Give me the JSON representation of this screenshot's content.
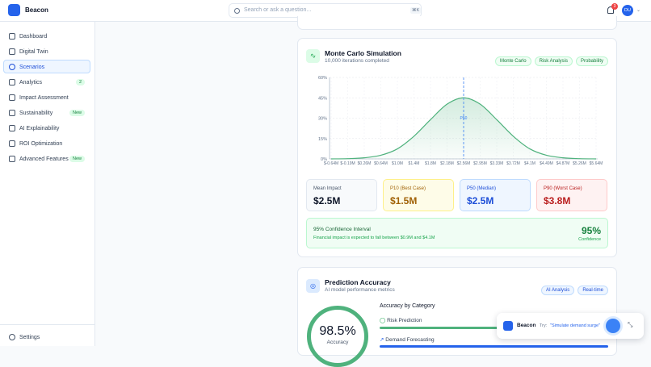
{
  "header": {
    "brand": "Beacon",
    "search_placeholder": "Search or ask a question...",
    "shortcut": "⌘K",
    "notifications": "3",
    "avatar": "DU"
  },
  "sidebar": {
    "items": [
      {
        "label": "Dashboard"
      },
      {
        "label": "Digital Twin"
      },
      {
        "label": "Scenarios"
      },
      {
        "label": "Analytics",
        "badge": "2"
      },
      {
        "label": "Impact Assessment"
      },
      {
        "label": "Sustainability",
        "badge": "New"
      },
      {
        "label": "AI Explainability"
      },
      {
        "label": "ROI Optimization"
      },
      {
        "label": "Advanced Features",
        "badge": "New"
      }
    ],
    "footer": "Settings"
  },
  "monte_carlo": {
    "title": "Monte Carlo Simulation",
    "subtitle": "10,000 iterations completed",
    "tags": [
      "Monte Carlo",
      "Risk Analysis",
      "Probability"
    ],
    "stats": [
      {
        "label": "Mean Impact",
        "value": "$2.5M"
      },
      {
        "label": "P10 (Best Case)",
        "value": "$1.5M"
      },
      {
        "label": "P50 (Median)",
        "value": "$2.5M"
      },
      {
        "label": "P90 (Worst Case)",
        "value": "$3.8M"
      }
    ],
    "confidence": {
      "title": "95% Confidence Interval",
      "text": "Financial impact is expected to fall between $0.9M and $4.1M",
      "value": "95%",
      "caption": "Confidence"
    }
  },
  "chart_data": {
    "type": "area",
    "color": "#4fb27d",
    "grid": true,
    "categories": [
      "$-0.64M",
      "$-0.19M",
      "$0.26M",
      "$0.64M",
      "$1.0M",
      "$1.4M",
      "$1.8M",
      "$2.18M",
      "$2.56M",
      "$2.95M",
      "$3.33M",
      "$3.72M",
      "$4.1M",
      "$4.49M",
      "$4.87M",
      "$5.26M",
      "$5.64M"
    ],
    "values": [
      0,
      0.2,
      0.8,
      2.7,
      7.4,
      16.7,
      28.9,
      40.3,
      45,
      40.3,
      28.9,
      16.7,
      7.4,
      2.7,
      0.8,
      0.2,
      0
    ],
    "ylim": [
      0,
      60
    ],
    "yticks": [
      {
        "value": 0,
        "label": "0%"
      },
      {
        "value": 15,
        "label": "15%"
      },
      {
        "value": 30,
        "label": "30%"
      },
      {
        "value": 45,
        "label": "45%"
      },
      {
        "value": 60,
        "label": "60%"
      }
    ],
    "annotations": [
      {
        "label": "P50",
        "x": "$2.56M"
      }
    ]
  },
  "accuracy": {
    "title": "Prediction Accuracy",
    "subtitle": "AI model performance metrics",
    "tags": [
      "AI Analysis",
      "Real-time"
    ],
    "score": "98.5%",
    "score_label": "Accuracy",
    "section": "Accuracy by Category",
    "items": [
      "Risk Prediction",
      "Demand Forecasting"
    ]
  },
  "assistant": {
    "brand": "Beacon",
    "prompt": "Try:",
    "suggestion": "\"Simulate demand surge\""
  }
}
